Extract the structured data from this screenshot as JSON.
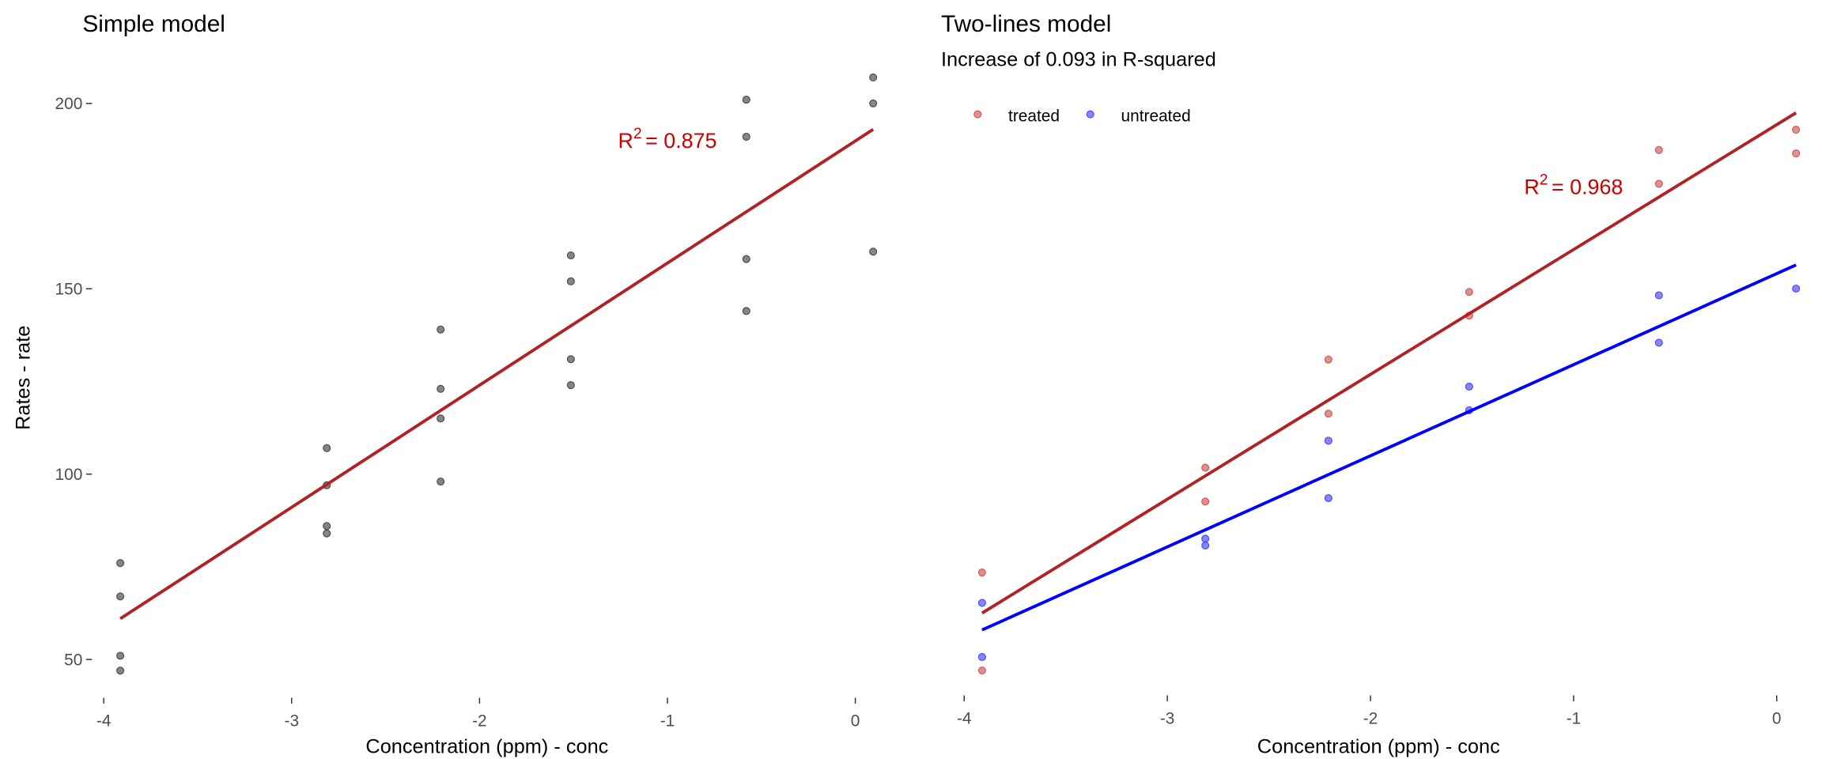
{
  "chart_data": [
    {
      "type": "scatter",
      "title": "Simple model",
      "x_label": "Concentration (ppm) - conc",
      "y_label": "Rates - rate",
      "xlim": [
        -4.05,
        0.13
      ],
      "ylim": [
        40,
        212
      ],
      "xticks": [
        -4,
        -3,
        -2,
        -1,
        0
      ],
      "yticks": [
        50,
        100,
        150,
        200
      ],
      "series": [
        {
          "color": "#333333",
          "x": [
            -3.912,
            -3.912,
            -2.813,
            -2.813,
            -2.207,
            -2.207,
            -1.514,
            -1.514,
            -0.58,
            -0.58,
            0.095,
            0.095,
            -3.912,
            -3.912,
            -2.813,
            -2.813,
            -2.207,
            -2.207,
            -1.514,
            -1.514,
            -0.58,
            -0.58,
            0.095
          ],
          "values": [
            76,
            47,
            97,
            107,
            123,
            139,
            159,
            152,
            191,
            201,
            207,
            200,
            67,
            51,
            84,
            86,
            98,
            115,
            131,
            124,
            144,
            158,
            160
          ]
        }
      ],
      "fit_lines": [
        {
          "color": "#b22222",
          "x": [
            -3.912,
            0.095
          ],
          "values": [
            61,
            193
          ]
        }
      ],
      "annotation": {
        "base": "R",
        "exponent": "2",
        "rest": "= 0.875",
        "x": -1,
        "y": 188,
        "color": "#cc0000"
      }
    },
    {
      "type": "scatter",
      "title": "Two-lines model",
      "subtitle": "Increase of 0.093 in R-squared",
      "x_label": "Concentration (ppm) - conc",
      "xlim": [
        -4.05,
        0.13
      ],
      "ylim": [
        40,
        214
      ],
      "xticks": [
        -4,
        -3,
        -2,
        -1,
        0
      ],
      "legend": "top-left",
      "series": [
        {
          "name": "treated",
          "color": "#cc4444",
          "x": [
            -3.912,
            -3.912,
            -2.813,
            -2.813,
            -2.207,
            -2.207,
            -1.514,
            -1.514,
            -0.58,
            -0.58,
            0.095,
            0.095
          ],
          "values": [
            76,
            47,
            97,
            107,
            123,
            139,
            159,
            152,
            191,
            201,
            207,
            200
          ]
        },
        {
          "name": "untreated",
          "color": "#3333ff",
          "x": [
            -3.912,
            -3.912,
            -2.813,
            -2.813,
            -2.207,
            -2.207,
            -1.514,
            -1.514,
            -0.58,
            -0.58,
            0.095
          ],
          "values": [
            67,
            51,
            84,
            86,
            98,
            115,
            131,
            124,
            144,
            158,
            160
          ]
        }
      ],
      "fit_lines": [
        {
          "color": "#b22222",
          "x": [
            -3.912,
            0.095
          ],
          "values": [
            64,
            212
          ]
        },
        {
          "color": "#0000ff",
          "x": [
            -3.912,
            0.095
          ],
          "values": [
            59,
            167
          ]
        }
      ],
      "annotation": {
        "base": "R",
        "exponent": "2",
        "rest": "= 0.968",
        "x": -1,
        "y": 188,
        "color": "#cc0000"
      }
    }
  ]
}
